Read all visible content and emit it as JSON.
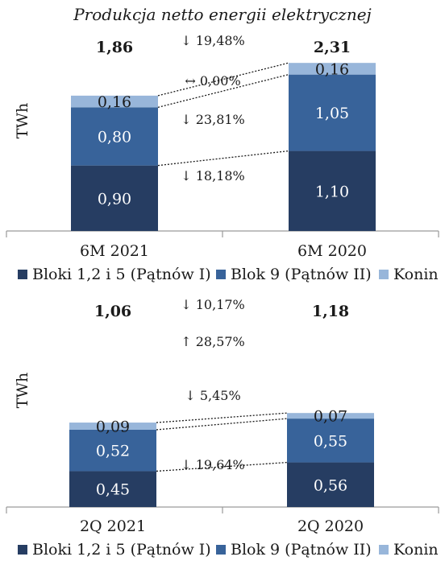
{
  "title": "Produkcja netto energii elektrycznej",
  "colors": {
    "bloki": "#263d62",
    "blok9": "#38639a",
    "konin": "#98b6da"
  },
  "chart_data": [
    {
      "type": "bar",
      "stacked": true,
      "ylabel": "TWh",
      "categories": [
        "6M 2021",
        "6M 2020"
      ],
      "series": [
        {
          "name": "Bloki 1,2 i 5 (Pątnów I)",
          "values": [
            0.9,
            1.1
          ],
          "labels": [
            "0,90",
            "1,10"
          ]
        },
        {
          "name": "Blok 9 (Pątnów II)",
          "values": [
            0.8,
            1.05
          ],
          "labels": [
            "0,80",
            "1,05"
          ]
        },
        {
          "name": "Konin",
          "values": [
            0.16,
            0.16
          ],
          "labels": [
            "0,16",
            "0,16"
          ]
        }
      ],
      "totals": [
        "1,86",
        "2,31"
      ],
      "total_values": [
        1.86,
        2.31
      ],
      "changes": [
        {
          "text": "19,48%",
          "direction": "down",
          "level": "total"
        },
        {
          "text": "0,00%",
          "direction": "flat",
          "level": "Konin"
        },
        {
          "text": "23,81%",
          "direction": "down",
          "level": "Blok 9 (Pątnów II)"
        },
        {
          "text": "18,18%",
          "direction": "down",
          "level": "Bloki 1,2 i 5 (Pątnów I)"
        }
      ]
    },
    {
      "type": "bar",
      "stacked": true,
      "ylabel": "TWh",
      "categories": [
        "2Q 2021",
        "2Q 2020"
      ],
      "series": [
        {
          "name": "Bloki 1,2 i 5 (Pątnów I)",
          "values": [
            0.45,
            0.56
          ],
          "labels": [
            "0,45",
            "0,56"
          ]
        },
        {
          "name": "Blok 9 (Pątnów II)",
          "values": [
            0.52,
            0.55
          ],
          "labels": [
            "0,52",
            "0,55"
          ]
        },
        {
          "name": "Konin",
          "values": [
            0.09,
            0.07
          ],
          "labels": [
            "0,09",
            "0,07"
          ]
        }
      ],
      "totals": [
        "1,06",
        "1,18"
      ],
      "total_values": [
        1.06,
        1.18
      ],
      "changes": [
        {
          "text": "10,17%",
          "direction": "down",
          "level": "total"
        },
        {
          "text": "28,57%",
          "direction": "up",
          "level": "Konin"
        },
        {
          "text": "5,45%",
          "direction": "down",
          "level": "Blok 9 (Pątnów II)"
        },
        {
          "text": "19,64%",
          "direction": "down",
          "level": "Bloki 1,2 i 5 (Pątnów I)"
        }
      ]
    }
  ]
}
